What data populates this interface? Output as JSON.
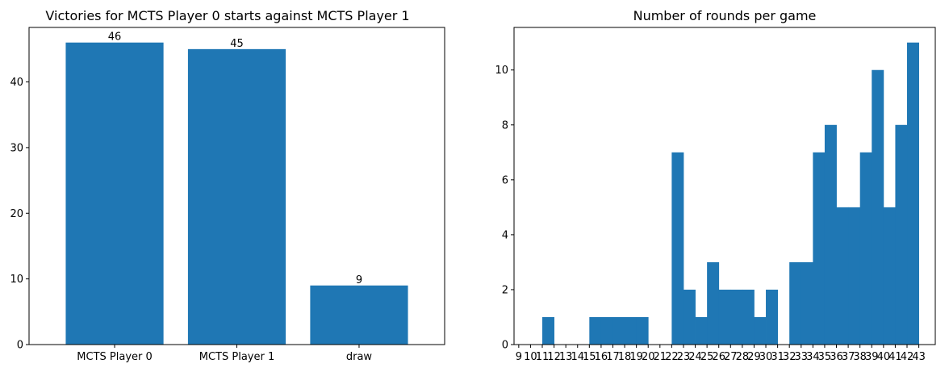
{
  "chart_data": [
    {
      "type": "bar",
      "title": "Victories for MCTS Player 0 starts against MCTS Player 1",
      "categories": [
        "MCTS Player 0",
        "MCTS Player 1",
        "draw"
      ],
      "values": [
        46,
        45,
        9
      ],
      "data_labels": [
        "46",
        "45",
        "9"
      ],
      "xlabel": "",
      "ylabel": "",
      "ylim": [
        0,
        48.3
      ],
      "yticks": [
        0,
        10,
        20,
        30,
        40
      ],
      "grid": false,
      "color": "#1f77b4"
    },
    {
      "type": "bar",
      "subtype": "histogram",
      "title": "Number of rounds per game",
      "bins": [
        [
          11,
          12,
          1
        ],
        [
          15,
          16,
          1
        ],
        [
          16,
          17,
          1
        ],
        [
          17,
          18,
          1
        ],
        [
          18,
          19,
          1
        ],
        [
          19,
          20,
          1
        ],
        [
          22,
          23,
          7
        ],
        [
          23,
          24,
          2
        ],
        [
          24,
          25,
          1
        ],
        [
          25,
          26,
          3
        ],
        [
          26,
          27,
          2
        ],
        [
          27,
          28,
          2
        ],
        [
          28,
          29,
          2
        ],
        [
          29,
          30,
          1
        ],
        [
          30,
          31,
          2
        ],
        [
          32,
          33,
          3
        ],
        [
          33,
          34,
          3
        ],
        [
          34,
          35,
          7
        ],
        [
          35,
          36,
          8
        ],
        [
          36,
          37,
          5
        ],
        [
          37,
          38,
          5
        ],
        [
          38,
          39,
          7
        ],
        [
          39,
          40,
          10
        ],
        [
          40,
          41,
          5
        ],
        [
          41,
          42,
          8
        ],
        [
          42,
          43,
          11
        ]
      ],
      "xticks": [
        9,
        10,
        11,
        12,
        13,
        14,
        15,
        16,
        17,
        18,
        19,
        20,
        21,
        22,
        23,
        24,
        25,
        26,
        27,
        28,
        29,
        30,
        31,
        32,
        33,
        34,
        35,
        36,
        37,
        38,
        39,
        40,
        41,
        42,
        43
      ],
      "yticks": [
        0,
        2,
        4,
        6,
        8,
        10
      ],
      "xlim": [
        8.6,
        44.4
      ],
      "ylim": [
        0,
        11.55
      ],
      "xlabel": "",
      "ylabel": "",
      "grid": false,
      "color": "#1f77b4"
    }
  ]
}
